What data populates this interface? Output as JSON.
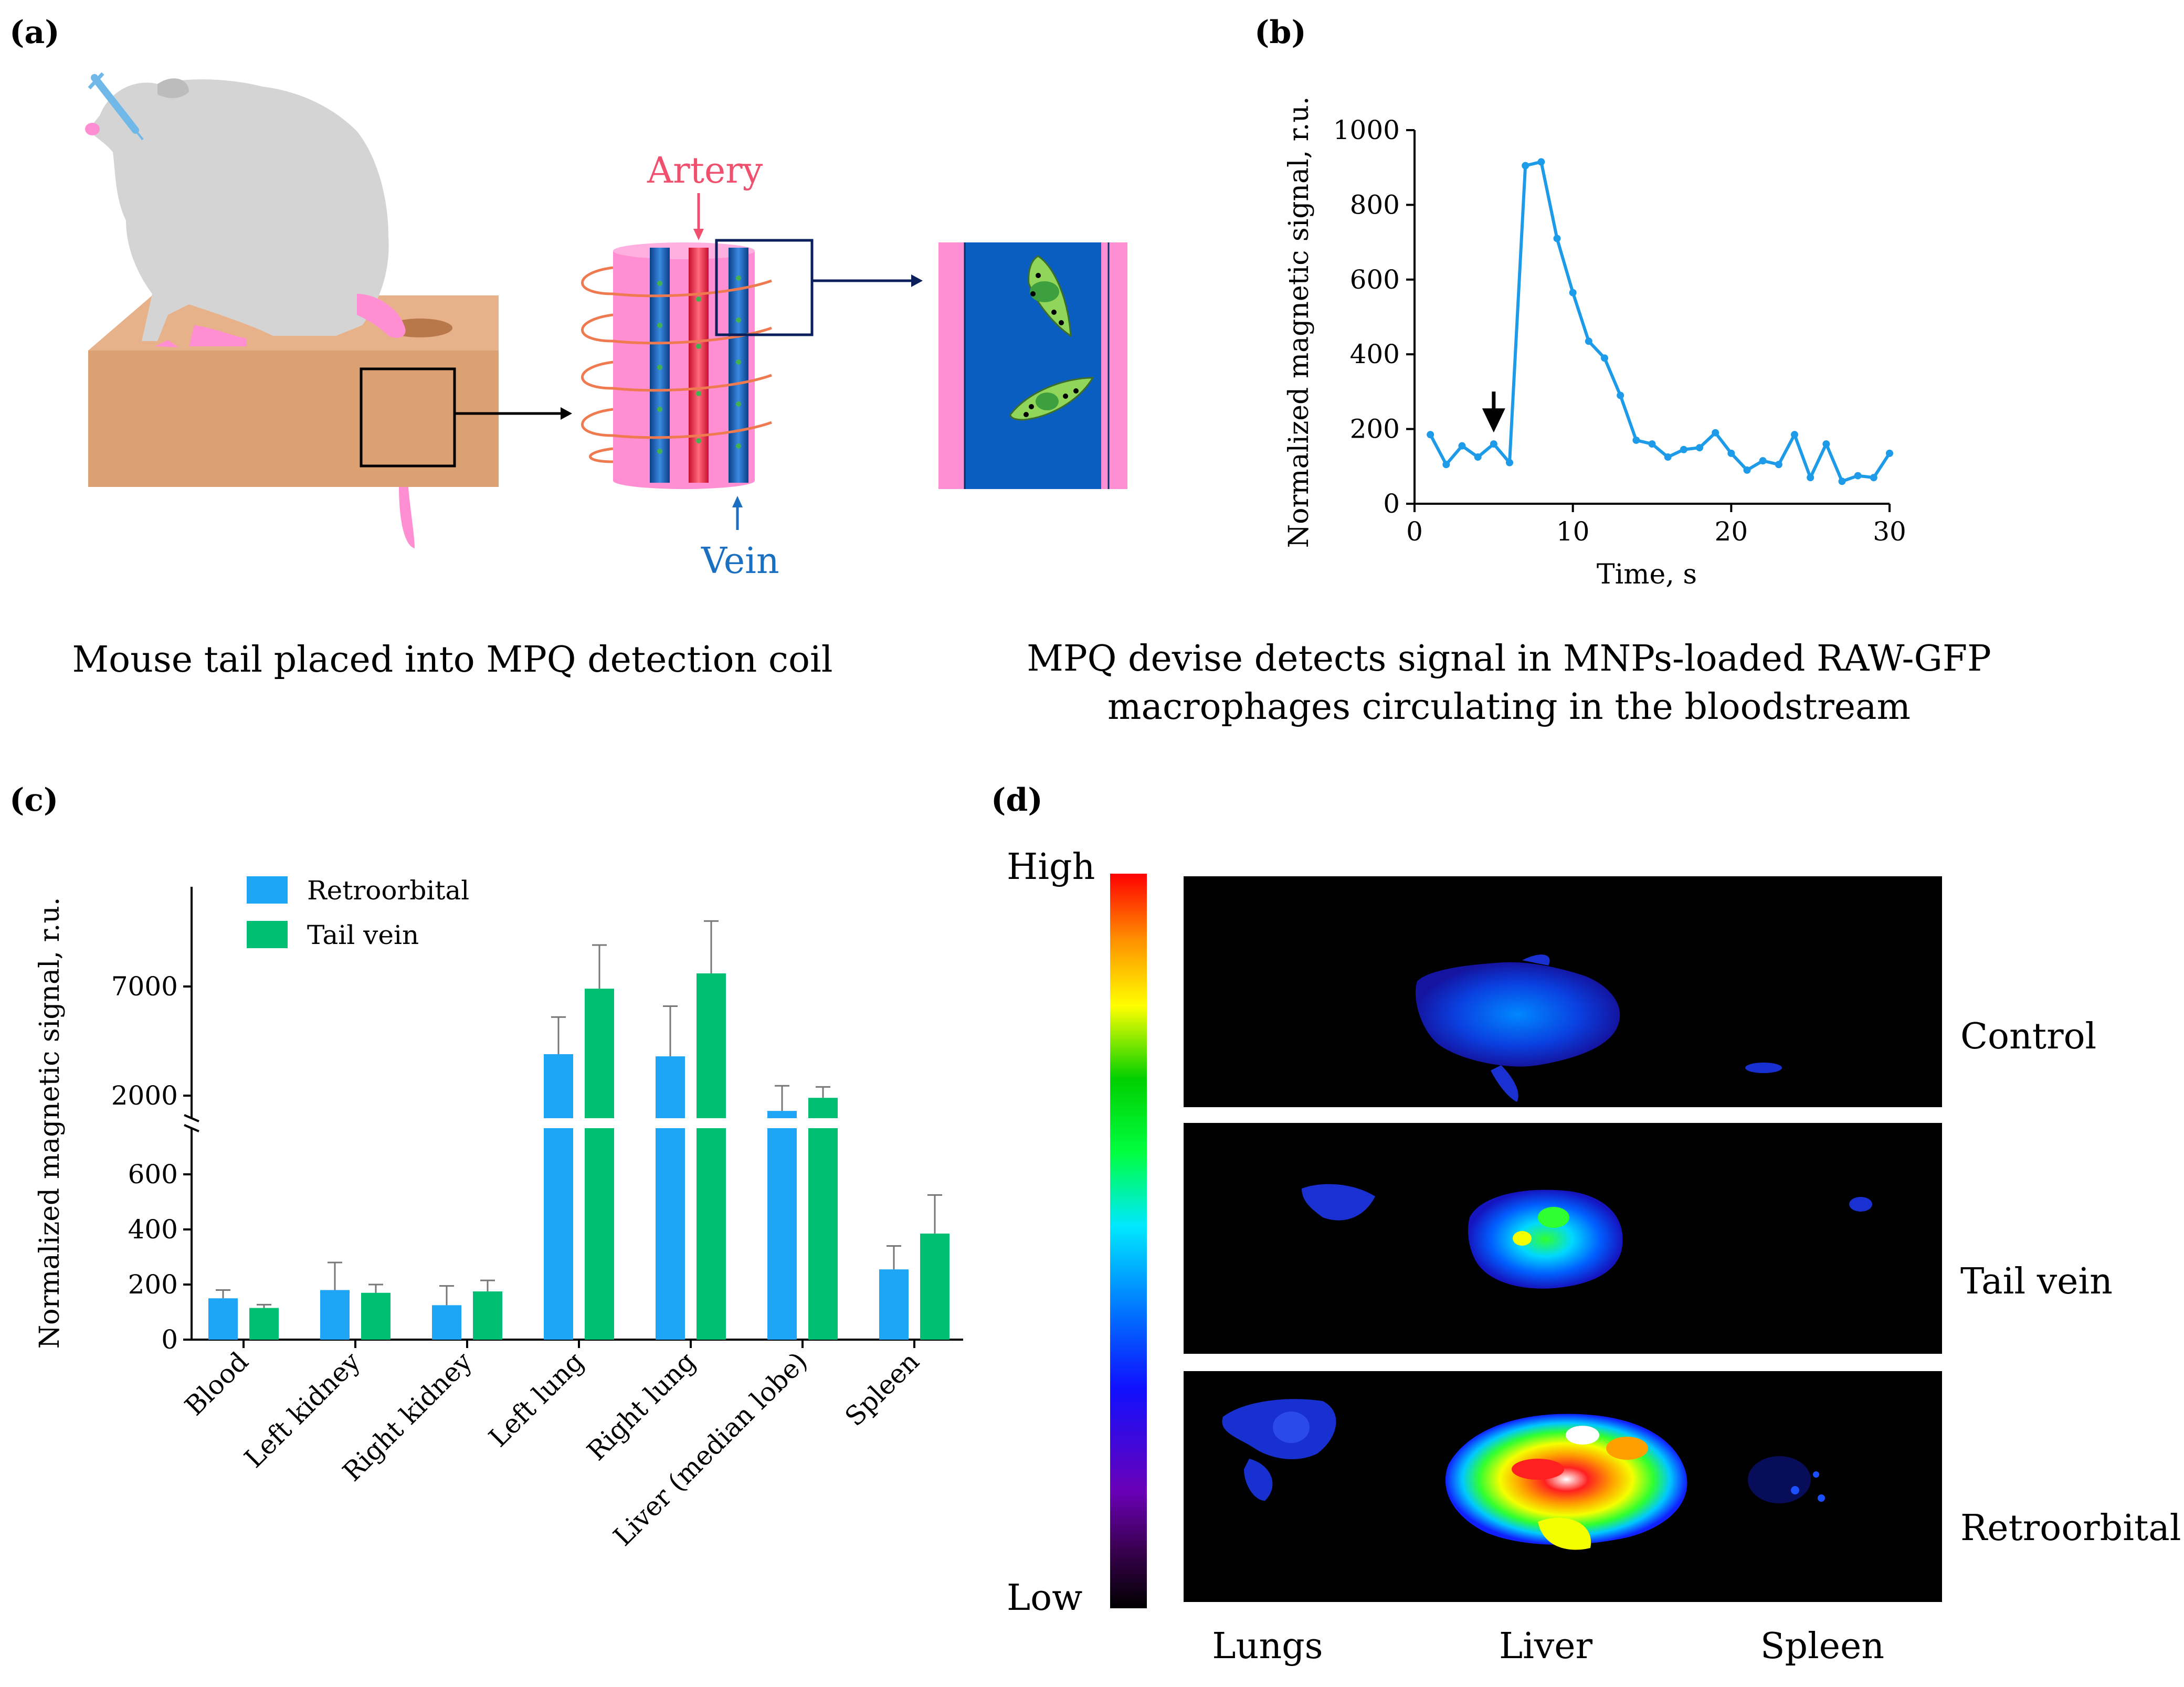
{
  "panels": {
    "a": {
      "label": "(a)",
      "artery_label": "Artery",
      "vein_label": "Vein",
      "caption": "Mouse tail placed into MPQ detection coil",
      "colors": {
        "artery": "#f0506e",
        "vein": "#1a6fc0",
        "tissue": "#ff8fd2",
        "box": "#dba173",
        "mouse": "#d4d4d4",
        "macrophage": "#8fd65a"
      }
    },
    "b": {
      "label": "(b)",
      "caption_line1": "MPQ devise detects signal in MNPs-loaded RAW-GFP",
      "caption_line2": "macrophages circulating in the bloodstream"
    },
    "c": {
      "label": "(c)"
    },
    "d": {
      "label": "(d)",
      "scale_high": "High",
      "scale_low": "Low",
      "rows": [
        "Control",
        "Tail vein",
        "Retroorbital"
      ],
      "columns": [
        "Lungs",
        "Liver",
        "Spleen"
      ]
    }
  },
  "chart_data": [
    {
      "panel": "b",
      "type": "line",
      "xlabel": "Time, s",
      "ylabel": "Normalized magnetic signal, r.u.",
      "xlim": [
        0,
        30
      ],
      "ylim": [
        0,
        1000
      ],
      "xticks": [
        0,
        10,
        20,
        30
      ],
      "yticks": [
        0,
        200,
        400,
        600,
        800,
        1000
      ],
      "color": "#1d9be8",
      "annotation": "arrow at injection time",
      "arrow_x": 5,
      "x": [
        1,
        2,
        3,
        4,
        5,
        6,
        7,
        8,
        9,
        10,
        11,
        12,
        13,
        14,
        15,
        16,
        17,
        18,
        19,
        20,
        21,
        22,
        23,
        24,
        25,
        26,
        27,
        28,
        29,
        30
      ],
      "y": [
        185,
        105,
        155,
        125,
        160,
        110,
        905,
        915,
        710,
        565,
        435,
        390,
        290,
        170,
        160,
        125,
        145,
        150,
        190,
        135,
        90,
        115,
        105,
        185,
        70,
        160,
        60,
        75,
        70,
        135
      ]
    },
    {
      "panel": "c",
      "type": "bar",
      "ylabel": "Normalized magnetic signal, r.u.",
      "categories": [
        "Blood",
        "Left kidney",
        "Right kidney",
        "Left lung",
        "Right lung",
        "Liver (median lobe)",
        "Spleen"
      ],
      "yticks_lower": [
        0,
        200,
        400,
        600
      ],
      "yticks_upper": [
        2000,
        7000
      ],
      "axis_break": [
        700,
        1500
      ],
      "legend_position": "top-left",
      "series": [
        {
          "name": "Retroorbital",
          "color": "#1ea5f5",
          "values": [
            150,
            180,
            125,
            3900,
            3800,
            1300,
            255
          ],
          "errors": [
            30,
            100,
            70,
            1700,
            2300,
            1150,
            85
          ]
        },
        {
          "name": "Tail vein",
          "color": "#00bf73",
          "values": [
            115,
            170,
            175,
            6900,
            7600,
            1900,
            385
          ],
          "errors": [
            12,
            30,
            40,
            2000,
            2400,
            500,
            140
          ]
        }
      ]
    }
  ]
}
